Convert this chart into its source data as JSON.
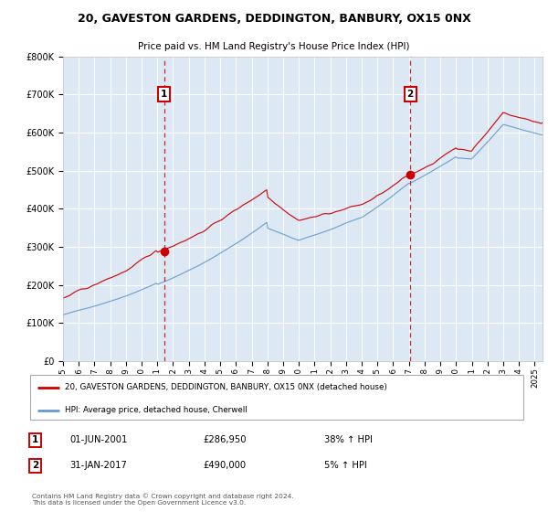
{
  "title": "20, GAVESTON GARDENS, DEDDINGTON, BANBURY, OX15 0NX",
  "subtitle": "Price paid vs. HM Land Registry's House Price Index (HPI)",
  "legend_line1": "20, GAVESTON GARDENS, DEDDINGTON, BANBURY, OX15 0NX (detached house)",
  "legend_line2": "HPI: Average price, detached house, Cherwell",
  "annotation1_date": "01-JUN-2001",
  "annotation1_price": "£286,950",
  "annotation1_hpi": "38% ↑ HPI",
  "annotation2_date": "31-JAN-2017",
  "annotation2_price": "£490,000",
  "annotation2_hpi": "5% ↑ HPI",
  "footer": "Contains HM Land Registry data © Crown copyright and database right 2024.\nThis data is licensed under the Open Government Licence v3.0.",
  "sale1_year": 2001.42,
  "sale1_value": 286950,
  "sale2_year": 2017.08,
  "sale2_value": 490000,
  "ylim_min": 0,
  "ylim_max": 800000,
  "xlim_min": 1995.0,
  "xlim_max": 2025.5,
  "hpi_color": "#6699cc",
  "price_color": "#cc0000",
  "plot_bg": "#dce9f5",
  "grid_color": "#ffffff",
  "annotation_color": "#cc0000"
}
